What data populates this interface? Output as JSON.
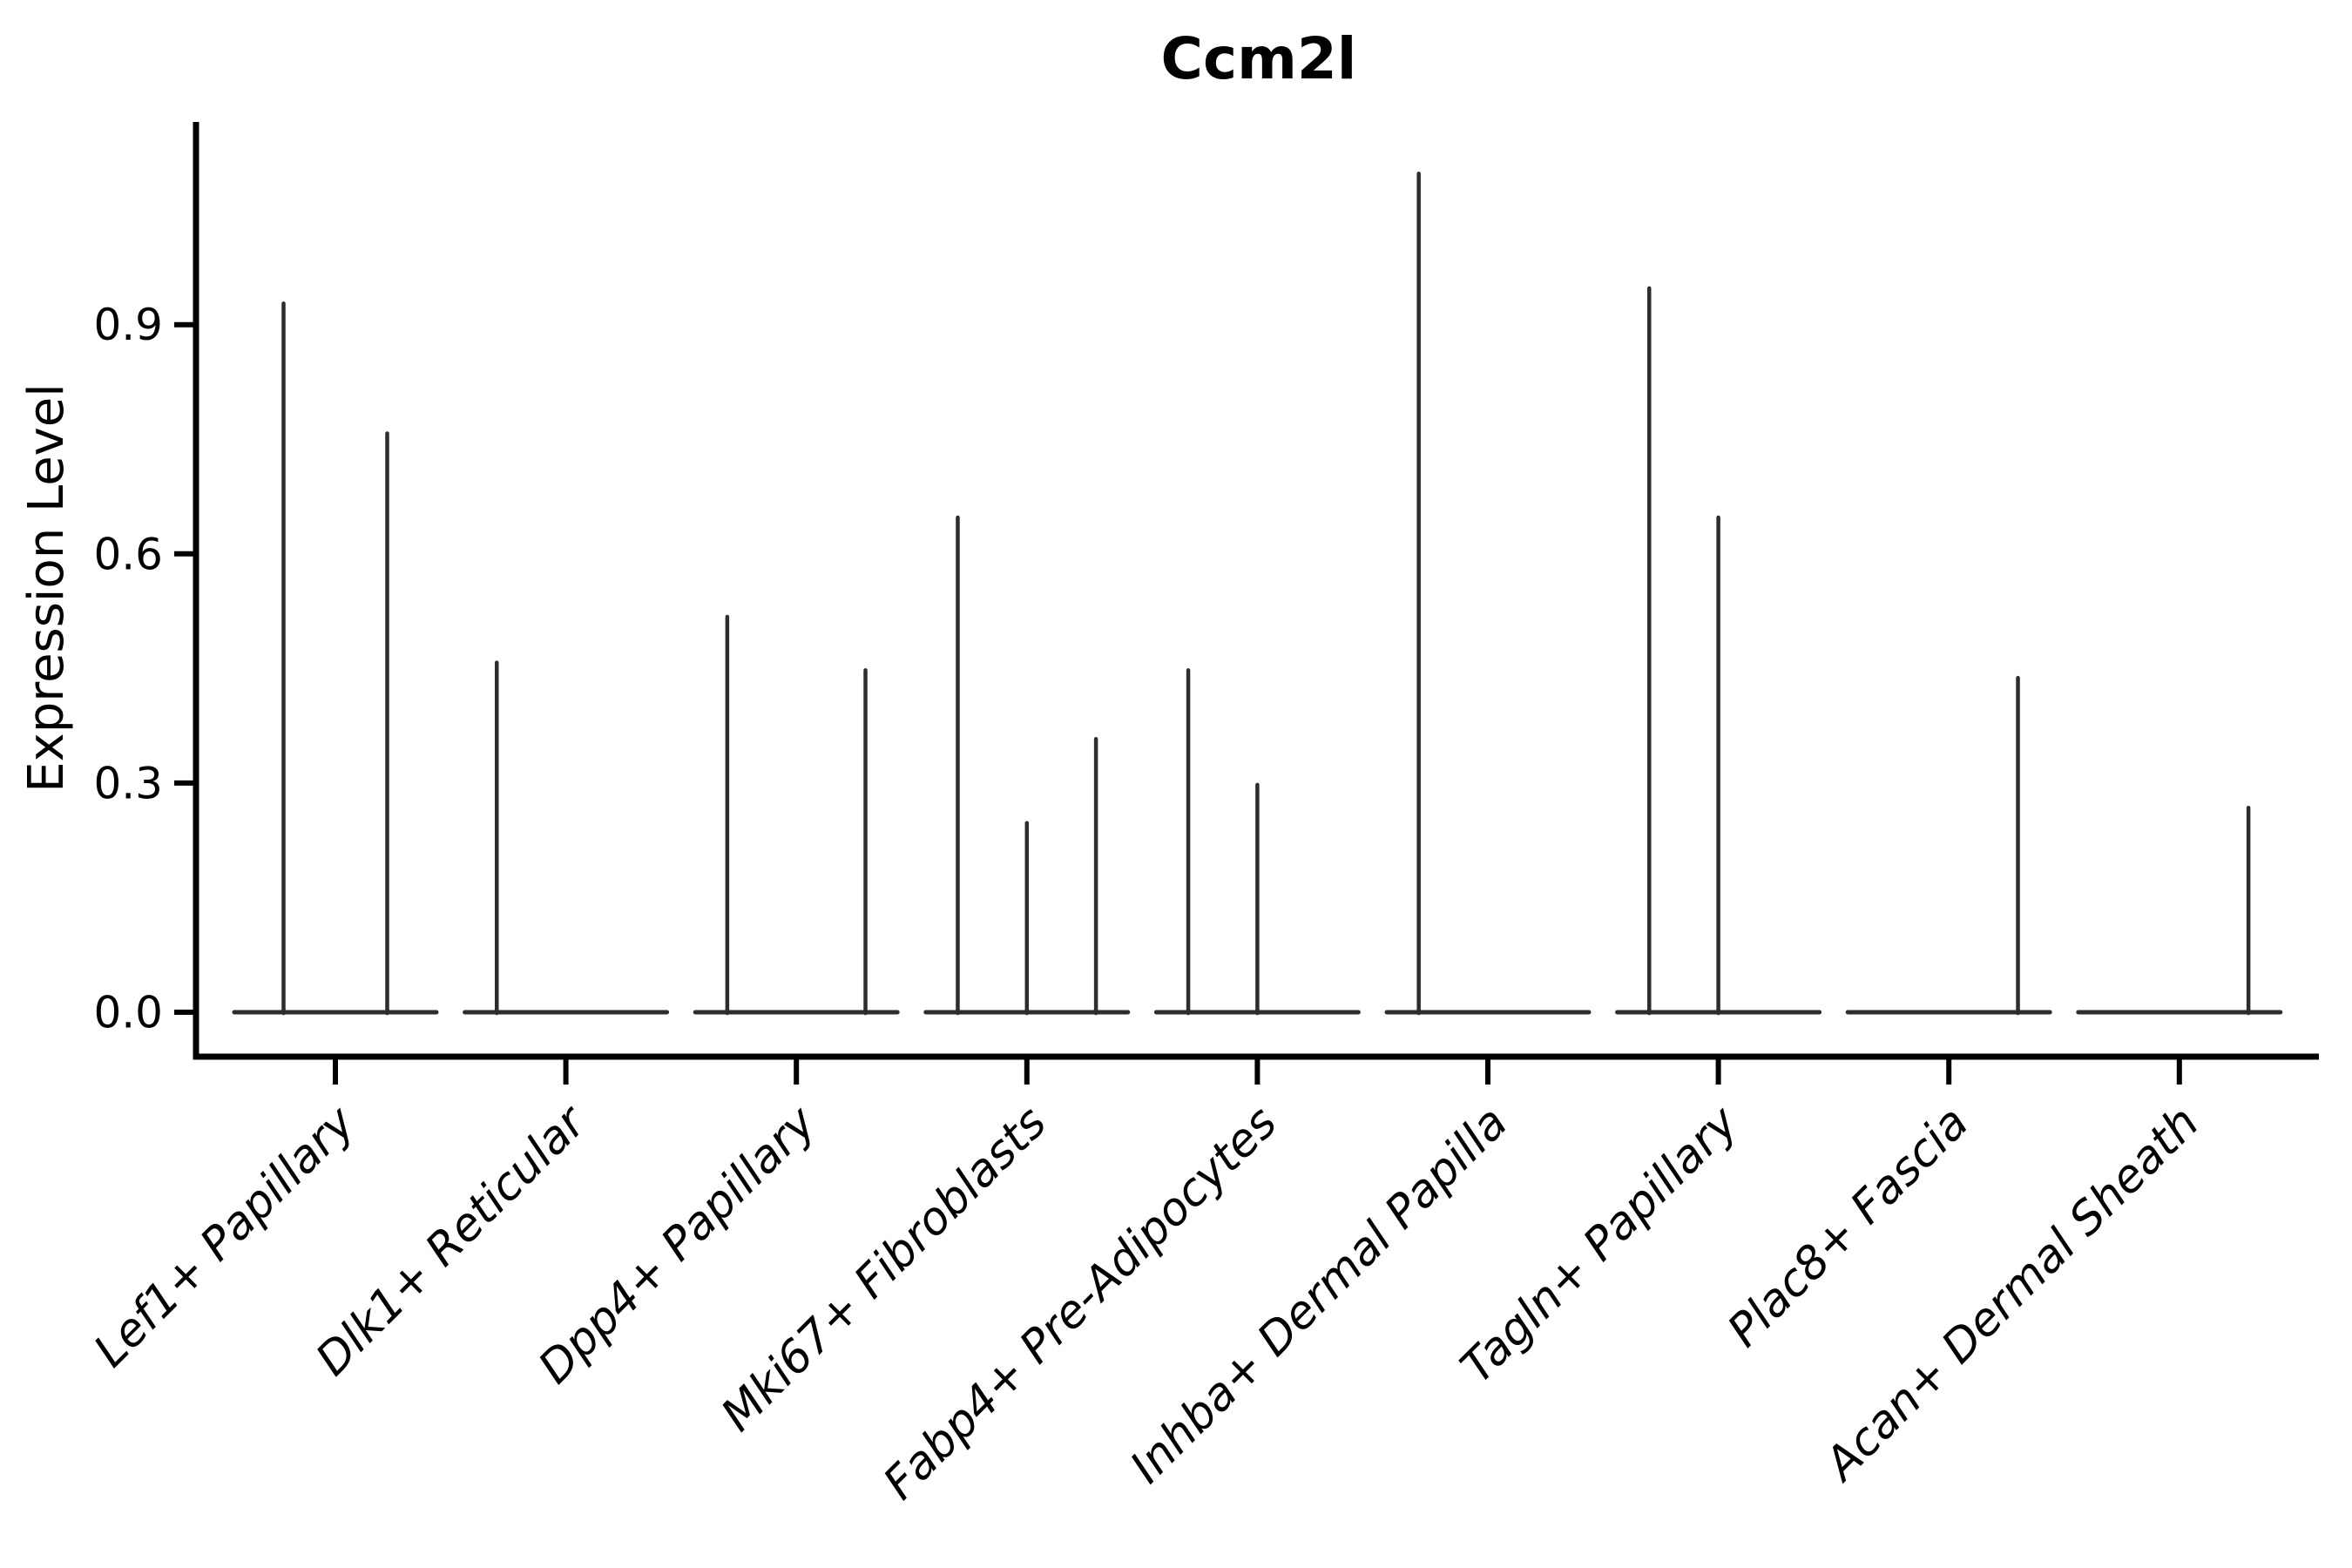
{
  "chart_data": {
    "type": "violin",
    "title": "Ccm2l",
    "ylabel": "Expression Level",
    "xlabel": "",
    "background": "#ffffff",
    "axis_color": "#000000",
    "violin_color": "#2d2d2d",
    "grid": false,
    "legend": "none",
    "ytick_labels": [
      "0.0",
      "0.3",
      "0.6",
      "0.9"
    ],
    "ytick_values": [
      0.0,
      0.3,
      0.6,
      0.9
    ],
    "ylim": [
      -0.058,
      1.165
    ],
    "x_label_rotation_deg": 45,
    "categories": [
      {
        "label": "Lef1+ Papillary",
        "n_groups": 2,
        "spikes": [
          {
            "group": 1,
            "peak": 0.93
          },
          {
            "group": 2,
            "peak": 0.76
          }
        ]
      },
      {
        "label": "Dlk1+ Reticular",
        "n_groups": 3,
        "spikes": [
          {
            "group": 1,
            "peak": 0.46
          }
        ]
      },
      {
        "label": "Dpp4+ Papillary",
        "n_groups": 3,
        "spikes": [
          {
            "group": 1,
            "peak": 0.52
          },
          {
            "group": 3,
            "peak": 0.45
          }
        ]
      },
      {
        "label": "Mki67+ Fibroblasts",
        "n_groups": 3,
        "spikes": [
          {
            "group": 1,
            "peak": 0.65
          },
          {
            "group": 2,
            "peak": 0.25
          },
          {
            "group": 3,
            "peak": 0.36
          }
        ]
      },
      {
        "label": "Fabp4+ Pre-Adipocytes",
        "n_groups": 3,
        "spikes": [
          {
            "group": 1,
            "peak": 0.45
          },
          {
            "group": 2,
            "peak": 0.3
          }
        ]
      },
      {
        "label": "Inhba+ Dermal Papilla",
        "n_groups": 3,
        "spikes": [
          {
            "group": 1,
            "peak": 1.1
          }
        ]
      },
      {
        "label": "Tagln+ Papillary",
        "n_groups": 3,
        "spikes": [
          {
            "group": 1,
            "peak": 0.95
          },
          {
            "group": 2,
            "peak": 0.65
          }
        ]
      },
      {
        "label": "Plac8+ Fascia",
        "n_groups": 3,
        "spikes": [
          {
            "group": 3,
            "peak": 0.44
          }
        ]
      },
      {
        "label": "Acan+ Dermal Sheath",
        "n_groups": 3,
        "spikes": [
          {
            "group": 3,
            "peak": 0.27
          }
        ]
      }
    ]
  }
}
